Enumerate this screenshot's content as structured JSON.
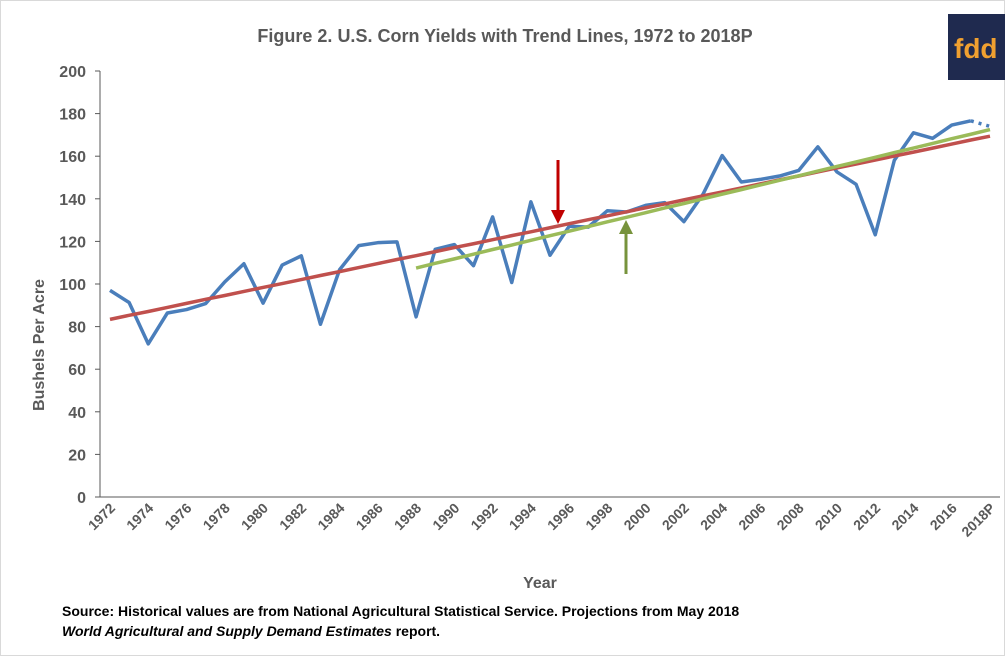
{
  "chart_data": {
    "type": "line",
    "title": "Figure 2. U.S. Corn Yields with Trend Lines, 1972 to 2018P",
    "x_label": "Year",
    "y_label": "Bushels Per Acre",
    "categories": [
      "1972",
      null,
      "1974",
      null,
      "1976",
      null,
      "1978",
      null,
      "1980",
      null,
      "1982",
      null,
      "1984",
      null,
      "1986",
      null,
      "1988",
      null,
      "1990",
      null,
      "1992",
      null,
      "1994",
      null,
      "1996",
      null,
      "1998",
      null,
      "2000",
      null,
      "2002",
      null,
      "2004",
      null,
      "2006",
      null,
      "2008",
      null,
      "2010",
      null,
      "2012",
      null,
      "2014",
      null,
      "2016",
      null,
      "2018P"
    ],
    "ylim": [
      0,
      200
    ],
    "yticks": [
      0,
      20,
      40,
      60,
      80,
      100,
      120,
      140,
      160,
      180,
      200
    ],
    "series": [
      {
        "color": "#4a7ebb",
        "dashed": false,
        "values": [
          97.0,
          91.3,
          71.9,
          86.4,
          88.0,
          90.8,
          101.0,
          109.5,
          91.0,
          108.9,
          113.2,
          81.1,
          106.7,
          118.0,
          119.4,
          119.8,
          84.6,
          116.3,
          118.5,
          108.6,
          131.5,
          100.7,
          138.6,
          113.5,
          127.1,
          126.7,
          134.4,
          133.8,
          136.9,
          138.2,
          129.3,
          142.2,
          160.3,
          147.9,
          149.1,
          150.7,
          153.3,
          164.4,
          152.6,
          146.8,
          123.1,
          158.1,
          171.0,
          168.4,
          174.6,
          176.6,
          null
        ]
      },
      {
        "color": "#4a7ebb",
        "dashed": true,
        "values": [
          null,
          null,
          null,
          null,
          null,
          null,
          null,
          null,
          null,
          null,
          null,
          null,
          null,
          null,
          null,
          null,
          null,
          null,
          null,
          null,
          null,
          null,
          null,
          null,
          null,
          null,
          null,
          null,
          null,
          null,
          null,
          null,
          null,
          null,
          null,
          null,
          null,
          null,
          null,
          null,
          null,
          null,
          null,
          null,
          null,
          176.6,
          174.0
        ]
      },
      {
        "color": "#c0504d",
        "dashed": false,
        "values": [
          83.4,
          85.3,
          87.1,
          89.0,
          90.9,
          92.8,
          94.6,
          96.5,
          98.4,
          100.2,
          102.1,
          104.0,
          105.8,
          107.7,
          109.6,
          111.5,
          113.3,
          115.2,
          117.1,
          118.9,
          120.8,
          122.7,
          124.5,
          126.4,
          128.3,
          130.2,
          132.0,
          133.9,
          135.8,
          137.6,
          139.5,
          141.4,
          143.2,
          145.1,
          147.0,
          148.9,
          150.7,
          152.6,
          154.5,
          156.3,
          158.2,
          160.1,
          161.9,
          163.8,
          165.7,
          167.6,
          169.4
        ]
      },
      {
        "color": "#9bbb59",
        "dashed": false,
        "values": [
          null,
          null,
          null,
          null,
          null,
          null,
          null,
          null,
          null,
          null,
          null,
          null,
          null,
          null,
          null,
          null,
          107.5,
          109.7,
          111.8,
          114.0,
          116.2,
          118.3,
          120.5,
          122.7,
          124.8,
          127.0,
          129.2,
          131.3,
          133.5,
          135.7,
          137.8,
          140.0,
          142.2,
          144.3,
          146.5,
          148.7,
          150.8,
          153.0,
          155.2,
          157.3,
          159.5,
          161.7,
          163.8,
          166.0,
          168.2,
          170.3,
          172.5
        ]
      }
    ],
    "source": {
      "line1": "Source:  Historical values are from National Agricultural Statistical Service.  Projections from May 2018",
      "line2_italic": "World Agricultural and Supply Demand Estimates",
      "line2_rest": " report."
    },
    "logo": "fdd"
  }
}
